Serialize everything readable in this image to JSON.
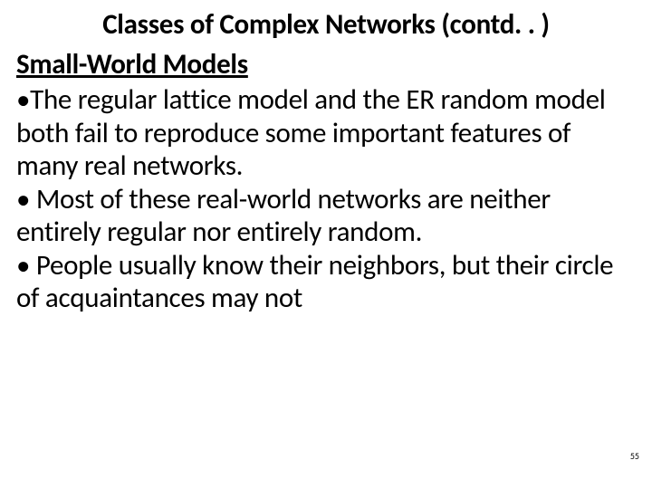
{
  "slide": {
    "title": "Classes of Complex Networks (contd. . )",
    "subtitle": "Small-World Models",
    "body": "•The regular lattice model and the ER random model both fail to reproduce some important features of many real networks.\n• Most of these real-world networks are neither entirely regular nor entirely random.\n• People usually know their neighbors, but their circle of acquaintances may not",
    "page_number": "55"
  },
  "style": {
    "background_color": "#ffffff",
    "text_color": "#000000",
    "title_fontsize": 31,
    "subtitle_fontsize": 31,
    "body_fontsize": 31,
    "font_family": "Calibri"
  }
}
